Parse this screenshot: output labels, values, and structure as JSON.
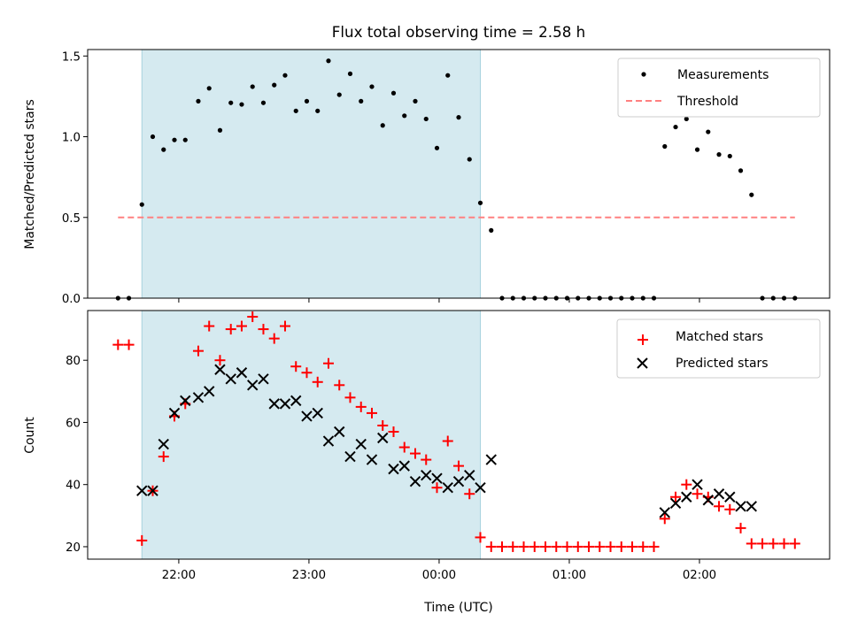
{
  "chart_data": {
    "type": "scatter",
    "title": "Flux total observing time = 2.58 h",
    "shaded_span": {
      "start": "21:43",
      "end": "00:19",
      "color": "#d5eaf0"
    },
    "x_axis": {
      "label": "Time (UTC)",
      "range": [
        "21:18",
        "03:00"
      ],
      "ticks": [
        "22:00",
        "23:00",
        "00:00",
        "01:00",
        "02:00"
      ]
    },
    "panels": [
      {
        "ylabel": "Matched/Predicted stars",
        "ylim": [
          0,
          1.54
        ],
        "yticks": [
          "0.0",
          "0.5",
          "1.0",
          "1.5"
        ],
        "legend": {
          "placement": "top-right"
        },
        "series": [
          {
            "name": "Measurements",
            "marker": "dot",
            "color": "#000000",
            "points": [
              [
                "21:32",
                0.0
              ],
              [
                "21:37",
                0.0
              ],
              [
                "21:43",
                0.58
              ],
              [
                "21:48",
                1.0
              ],
              [
                "21:53",
                0.92
              ],
              [
                "21:58",
                0.98
              ],
              [
                "22:03",
                0.98
              ],
              [
                "22:09",
                1.22
              ],
              [
                "22:14",
                1.3
              ],
              [
                "22:19",
                1.04
              ],
              [
                "22:24",
                1.21
              ],
              [
                "22:29",
                1.2
              ],
              [
                "22:34",
                1.31
              ],
              [
                "22:39",
                1.21
              ],
              [
                "22:44",
                1.32
              ],
              [
                "22:49",
                1.38
              ],
              [
                "22:54",
                1.16
              ],
              [
                "22:59",
                1.22
              ],
              [
                "23:04",
                1.16
              ],
              [
                "23:09",
                1.47
              ],
              [
                "23:14",
                1.26
              ],
              [
                "23:19",
                1.39
              ],
              [
                "23:24",
                1.22
              ],
              [
                "23:29",
                1.31
              ],
              [
                "23:34",
                1.07
              ],
              [
                "23:39",
                1.27
              ],
              [
                "23:44",
                1.13
              ],
              [
                "23:49",
                1.22
              ],
              [
                "23:54",
                1.11
              ],
              [
                "23:59",
                0.93
              ],
              [
                "00:04",
                1.38
              ],
              [
                "00:09",
                1.12
              ],
              [
                "00:14",
                0.86
              ],
              [
                "00:19",
                0.59
              ],
              [
                "00:24",
                0.42
              ],
              [
                "00:29",
                0.0
              ],
              [
                "00:34",
                0.0
              ],
              [
                "00:39",
                0.0
              ],
              [
                "00:44",
                0.0
              ],
              [
                "00:49",
                0.0
              ],
              [
                "00:54",
                0.0
              ],
              [
                "00:59",
                0.0
              ],
              [
                "01:04",
                0.0
              ],
              [
                "01:09",
                0.0
              ],
              [
                "01:14",
                0.0
              ],
              [
                "01:19",
                0.0
              ],
              [
                "01:24",
                0.0
              ],
              [
                "01:29",
                0.0
              ],
              [
                "01:34",
                0.0
              ],
              [
                "01:39",
                0.0
              ],
              [
                "01:44",
                0.94
              ],
              [
                "01:49",
                1.06
              ],
              [
                "01:54",
                1.11
              ],
              [
                "01:59",
                0.92
              ],
              [
                "02:04",
                1.03
              ],
              [
                "02:09",
                0.89
              ],
              [
                "02:14",
                0.88
              ],
              [
                "02:19",
                0.79
              ],
              [
                "02:24",
                0.64
              ],
              [
                "02:29",
                0.0
              ],
              [
                "02:34",
                0.0
              ],
              [
                "02:39",
                0.0
              ],
              [
                "02:44",
                0.0
              ]
            ]
          },
          {
            "name": "Threshold",
            "marker": "dashed-line",
            "color": "#ff8080",
            "points": [
              [
                "21:32",
                0.5
              ],
              [
                "02:44",
                0.5
              ]
            ]
          }
        ]
      },
      {
        "ylabel": "Count",
        "ylim": [
          16,
          96
        ],
        "yticks": [
          "20",
          "40",
          "60",
          "80"
        ],
        "legend": {
          "placement": "top-right"
        },
        "series": [
          {
            "name": "Matched stars",
            "marker": "plus",
            "color": "#ff0000",
            "points": [
              [
                "21:32",
                85
              ],
              [
                "21:37",
                85
              ],
              [
                "21:43",
                22
              ],
              [
                "21:48",
                38
              ],
              [
                "21:53",
                49
              ],
              [
                "21:58",
                62
              ],
              [
                "22:03",
                66
              ],
              [
                "22:09",
                83
              ],
              [
                "22:14",
                91
              ],
              [
                "22:19",
                80
              ],
              [
                "22:24",
                90
              ],
              [
                "22:29",
                91
              ],
              [
                "22:34",
                94
              ],
              [
                "22:39",
                90
              ],
              [
                "22:44",
                87
              ],
              [
                "22:49",
                91
              ],
              [
                "22:54",
                78
              ],
              [
                "22:59",
                76
              ],
              [
                "23:04",
                73
              ],
              [
                "23:09",
                79
              ],
              [
                "23:14",
                72
              ],
              [
                "23:19",
                68
              ],
              [
                "23:24",
                65
              ],
              [
                "23:29",
                63
              ],
              [
                "23:34",
                59
              ],
              [
                "23:39",
                57
              ],
              [
                "23:44",
                52
              ],
              [
                "23:49",
                50
              ],
              [
                "23:54",
                48
              ],
              [
                "23:59",
                39
              ],
              [
                "00:04",
                54
              ],
              [
                "00:09",
                46
              ],
              [
                "00:14",
                37
              ],
              [
                "00:19",
                23
              ],
              [
                "00:24",
                20
              ],
              [
                "00:29",
                20
              ],
              [
                "00:34",
                20
              ],
              [
                "00:39",
                20
              ],
              [
                "00:44",
                20
              ],
              [
                "00:49",
                20
              ],
              [
                "00:54",
                20
              ],
              [
                "00:59",
                20
              ],
              [
                "01:04",
                20
              ],
              [
                "01:09",
                20
              ],
              [
                "01:14",
                20
              ],
              [
                "01:19",
                20
              ],
              [
                "01:24",
                20
              ],
              [
                "01:29",
                20
              ],
              [
                "01:34",
                20
              ],
              [
                "01:39",
                20
              ],
              [
                "01:44",
                29
              ],
              [
                "01:49",
                36
              ],
              [
                "01:54",
                40
              ],
              [
                "01:59",
                37
              ],
              [
                "02:04",
                36
              ],
              [
                "02:09",
                33
              ],
              [
                "02:14",
                32
              ],
              [
                "02:19",
                26
              ],
              [
                "02:24",
                21
              ],
              [
                "02:29",
                21
              ],
              [
                "02:34",
                21
              ],
              [
                "02:39",
                21
              ],
              [
                "02:44",
                21
              ]
            ]
          },
          {
            "name": "Predicted stars",
            "marker": "x",
            "color": "#000000",
            "points": [
              [
                "21:43",
                38
              ],
              [
                "21:48",
                38
              ],
              [
                "21:53",
                53
              ],
              [
                "21:58",
                63
              ],
              [
                "22:03",
                67
              ],
              [
                "22:09",
                68
              ],
              [
                "22:14",
                70
              ],
              [
                "22:19",
                77
              ],
              [
                "22:24",
                74
              ],
              [
                "22:29",
                76
              ],
              [
                "22:34",
                72
              ],
              [
                "22:39",
                74
              ],
              [
                "22:44",
                66
              ],
              [
                "22:49",
                66
              ],
              [
                "22:54",
                67
              ],
              [
                "22:59",
                62
              ],
              [
                "23:04",
                63
              ],
              [
                "23:09",
                54
              ],
              [
                "23:14",
                57
              ],
              [
                "23:19",
                49
              ],
              [
                "23:24",
                53
              ],
              [
                "23:29",
                48
              ],
              [
                "23:34",
                55
              ],
              [
                "23:39",
                45
              ],
              [
                "23:44",
                46
              ],
              [
                "23:49",
                41
              ],
              [
                "23:54",
                43
              ],
              [
                "23:59",
                42
              ],
              [
                "00:04",
                39
              ],
              [
                "00:09",
                41
              ],
              [
                "00:14",
                43
              ],
              [
                "00:19",
                39
              ],
              [
                "00:24",
                48
              ],
              [
                "01:44",
                31
              ],
              [
                "01:49",
                34
              ],
              [
                "01:54",
                36
              ],
              [
                "01:59",
                40
              ],
              [
                "02:04",
                35
              ],
              [
                "02:09",
                37
              ],
              [
                "02:14",
                36
              ],
              [
                "02:19",
                33
              ],
              [
                "02:24",
                33
              ]
            ]
          }
        ]
      }
    ]
  }
}
